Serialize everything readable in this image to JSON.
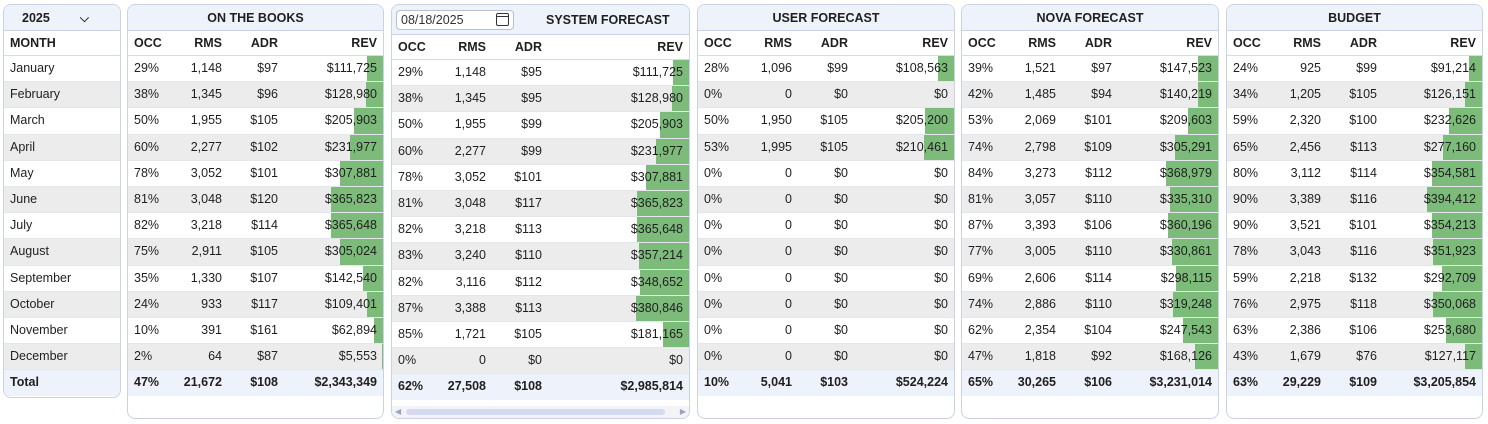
{
  "year": "2025",
  "month_header": "MONTH",
  "months": [
    "January",
    "February",
    "March",
    "April",
    "May",
    "June",
    "July",
    "August",
    "September",
    "October",
    "November",
    "December"
  ],
  "total_label": "Total",
  "columns": {
    "occ": "OCC",
    "rms": "RMS",
    "adr": "ADR",
    "rev": "REV"
  },
  "system_date": "08/18/2025",
  "bar_color": "#7cbb7a",
  "panels": [
    {
      "id": "on-the-books",
      "title": "ON THE BOOKS",
      "rows": [
        [
          "29%",
          "1,148",
          "$97",
          "$111,725",
          0.11
        ],
        [
          "38%",
          "1,345",
          "$96",
          "$128,980",
          0.12
        ],
        [
          "50%",
          "1,955",
          "$105",
          "$205,903",
          0.2
        ],
        [
          "60%",
          "2,277",
          "$102",
          "$231,977",
          0.23
        ],
        [
          "78%",
          "3,052",
          "$101",
          "$307,881",
          0.3
        ],
        [
          "81%",
          "3,048",
          "$120",
          "$365,823",
          0.36
        ],
        [
          "82%",
          "3,218",
          "$114",
          "$365,648",
          0.36
        ],
        [
          "75%",
          "2,911",
          "$105",
          "$305,024",
          0.3
        ],
        [
          "35%",
          "1,330",
          "$107",
          "$142,540",
          0.14
        ],
        [
          "24%",
          "933",
          "$117",
          "$109,401",
          0.11
        ],
        [
          "10%",
          "391",
          "$161",
          "$62,894",
          0.06
        ],
        [
          "2%",
          "64",
          "$87",
          "$5,553",
          0.01
        ]
      ],
      "total": [
        "47%",
        "21,672",
        "$108",
        "$2,343,349"
      ]
    },
    {
      "id": "system-forecast",
      "title": "SYSTEM FORECAST",
      "rows": [
        [
          "29%",
          "1,148",
          "$95",
          "$111,725",
          0.11
        ],
        [
          "38%",
          "1,345",
          "$95",
          "$128,980",
          0.12
        ],
        [
          "50%",
          "1,955",
          "$99",
          "$205,903",
          0.2
        ],
        [
          "60%",
          "2,277",
          "$99",
          "$231,977",
          0.23
        ],
        [
          "78%",
          "3,052",
          "$101",
          "$307,881",
          0.3
        ],
        [
          "81%",
          "3,048",
          "$117",
          "$365,823",
          0.36
        ],
        [
          "82%",
          "3,218",
          "$113",
          "$365,648",
          0.36
        ],
        [
          "83%",
          "3,240",
          "$110",
          "$357,214",
          0.35
        ],
        [
          "82%",
          "3,116",
          "$112",
          "$348,652",
          0.34
        ],
        [
          "87%",
          "3,388",
          "$113",
          "$380,846",
          0.37
        ],
        [
          "85%",
          "1,721",
          "$105",
          "$181,165",
          0.18
        ],
        [
          "0%",
          "0",
          "$0",
          "$0",
          0.0
        ]
      ],
      "total": [
        "62%",
        "27,508",
        "$108",
        "$2,985,814"
      ]
    },
    {
      "id": "user-forecast",
      "title": "USER FORECAST",
      "rows": [
        [
          "28%",
          "1,096",
          "$99",
          "$108,563",
          0.11
        ],
        [
          "0%",
          "0",
          "$0",
          "$0",
          0.0
        ],
        [
          "50%",
          "1,950",
          "$105",
          "$205,200",
          0.2
        ],
        [
          "53%",
          "1,995",
          "$105",
          "$210,461",
          0.21
        ],
        [
          "0%",
          "0",
          "$0",
          "$0",
          0.0
        ],
        [
          "0%",
          "0",
          "$0",
          "$0",
          0.0
        ],
        [
          "0%",
          "0",
          "$0",
          "$0",
          0.0
        ],
        [
          "0%",
          "0",
          "$0",
          "$0",
          0.0
        ],
        [
          "0%",
          "0",
          "$0",
          "$0",
          0.0
        ],
        [
          "0%",
          "0",
          "$0",
          "$0",
          0.0
        ],
        [
          "0%",
          "0",
          "$0",
          "$0",
          0.0
        ],
        [
          "0%",
          "0",
          "$0",
          "$0",
          0.0
        ]
      ],
      "total": [
        "10%",
        "5,041",
        "$103",
        "$524,224"
      ]
    },
    {
      "id": "nova-forecast",
      "title": "NOVA FORECAST",
      "rows": [
        [
          "39%",
          "1,521",
          "$97",
          "$147,523",
          0.14
        ],
        [
          "42%",
          "1,485",
          "$94",
          "$140,219",
          0.14
        ],
        [
          "53%",
          "2,069",
          "$101",
          "$209,603",
          0.21
        ],
        [
          "74%",
          "2,798",
          "$109",
          "$305,291",
          0.3
        ],
        [
          "84%",
          "3,273",
          "$112",
          "$368,979",
          0.36
        ],
        [
          "81%",
          "3,057",
          "$110",
          "$335,310",
          0.33
        ],
        [
          "87%",
          "3,393",
          "$106",
          "$360,196",
          0.35
        ],
        [
          "77%",
          "3,005",
          "$110",
          "$330,861",
          0.32
        ],
        [
          "69%",
          "2,606",
          "$114",
          "$298,115",
          0.29
        ],
        [
          "74%",
          "2,886",
          "$110",
          "$319,248",
          0.31
        ],
        [
          "62%",
          "2,354",
          "$104",
          "$247,543",
          0.24
        ],
        [
          "47%",
          "1,818",
          "$92",
          "$168,126",
          0.16
        ]
      ],
      "total": [
        "65%",
        "30,265",
        "$106",
        "$3,231,014"
      ]
    },
    {
      "id": "budget",
      "title": "BUDGET",
      "rows": [
        [
          "24%",
          "925",
          "$99",
          "$91,214",
          0.09
        ],
        [
          "34%",
          "1,205",
          "$105",
          "$126,151",
          0.12
        ],
        [
          "59%",
          "2,320",
          "$100",
          "$232,626",
          0.23
        ],
        [
          "65%",
          "2,456",
          "$113",
          "$277,160",
          0.27
        ],
        [
          "80%",
          "3,112",
          "$114",
          "$354,581",
          0.35
        ],
        [
          "90%",
          "3,389",
          "$116",
          "$394,412",
          0.38
        ],
        [
          "90%",
          "3,521",
          "$101",
          "$354,213",
          0.35
        ],
        [
          "78%",
          "3,043",
          "$116",
          "$351,923",
          0.34
        ],
        [
          "59%",
          "2,218",
          "$132",
          "$292,709",
          0.28
        ],
        [
          "76%",
          "2,975",
          "$118",
          "$350,068",
          0.34
        ],
        [
          "63%",
          "2,386",
          "$106",
          "$253,680",
          0.25
        ],
        [
          "43%",
          "1,679",
          "$76",
          "$127,117",
          0.12
        ]
      ],
      "total": [
        "63%",
        "29,229",
        "$109",
        "$3,205,854"
      ]
    }
  ]
}
